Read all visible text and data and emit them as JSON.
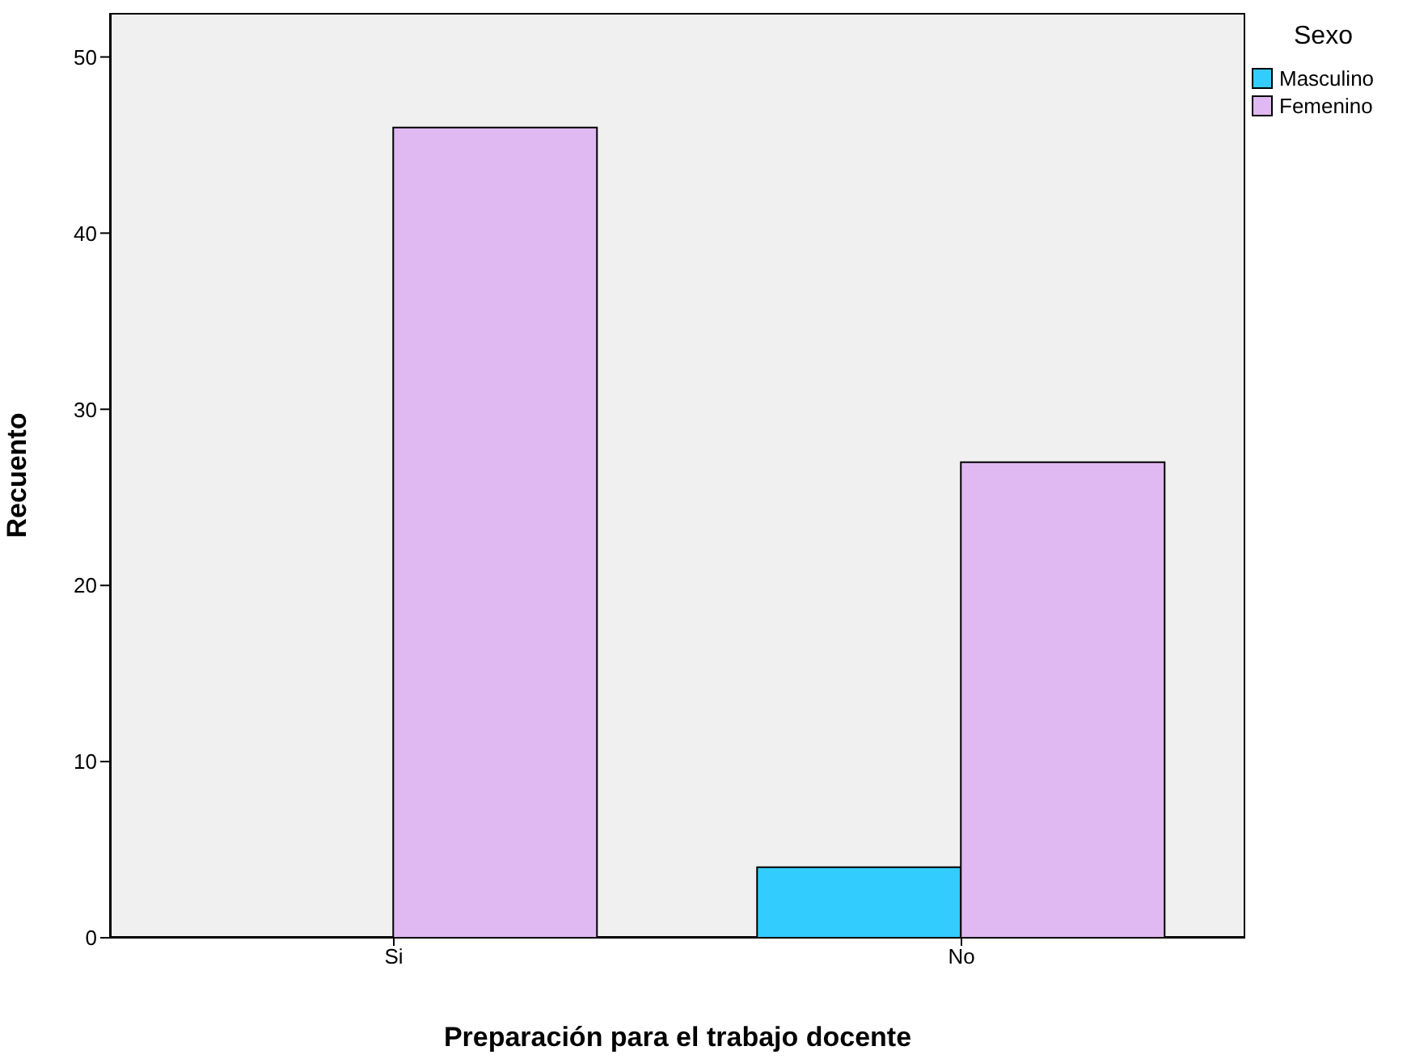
{
  "chart_data": {
    "type": "bar",
    "xlabel": "Preparación para el trabajo docente",
    "ylabel": "Recuento",
    "legend_title": "Sexo",
    "categories": [
      "Si",
      "No"
    ],
    "series": [
      {
        "name": "Masculino",
        "color": "#33ccff",
        "values": [
          0,
          4
        ]
      },
      {
        "name": "Femenino",
        "color": "#e0b8f2",
        "values": [
          46,
          27
        ]
      }
    ],
    "ylim": [
      0,
      52.5
    ],
    "yticks": [
      0,
      10,
      20,
      30,
      40,
      50
    ],
    "legend": "top right"
  }
}
